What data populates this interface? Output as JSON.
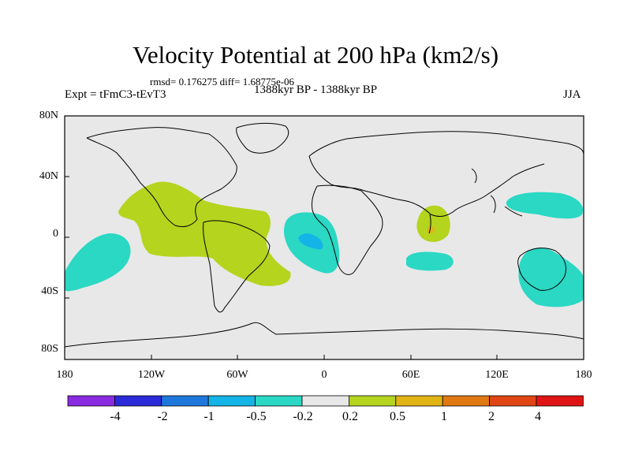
{
  "title": "Velocity Potential at 200 hPa (km2/s)",
  "stats_line": "rmsd= 0.176275 diff= 1.68775e-06",
  "left_label": "Expt = tFmC3-tEvT3",
  "center_label": "1388kyr BP - 1388kyr BP",
  "right_label": "JJA",
  "lat_ticks": [
    "80N",
    "40N",
    "0",
    "40S",
    "80S"
  ],
  "lon_ticks": [
    "180",
    "120W",
    "60W",
    "0",
    "60E",
    "120E",
    "180"
  ],
  "colorbar": {
    "colors": [
      "#8a2be2",
      "#2a2ad8",
      "#1e78dc",
      "#14b4e6",
      "#2ad8c4",
      "#e8e8e8",
      "#b4d41e",
      "#e0b414",
      "#e07814",
      "#e04614",
      "#e01414"
    ],
    "labels": [
      "-4",
      "-2",
      "-1",
      "-0.5",
      "-0.2",
      "0.2",
      "0.5",
      "1",
      "2",
      "4"
    ]
  },
  "colors": {
    "background": "#e8e8e8",
    "positive_0.2": "#b4d41e",
    "negative_0.2": "#2ad8c4",
    "negative_0.5": "#14b4e6",
    "positive_1": "#e0b414"
  }
}
